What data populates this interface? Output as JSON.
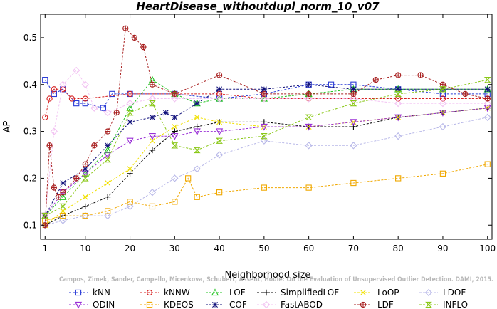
{
  "chart_data": {
    "type": "line",
    "title": "HeartDisease_withoutdupl_norm_10_v07",
    "xlabel": "Neighborhood size",
    "ylabel": "AP",
    "xlim": [
      0,
      101
    ],
    "ylim": [
      0.07,
      0.55
    ],
    "xticks": [
      1,
      10,
      20,
      30,
      40,
      50,
      60,
      70,
      80,
      90,
      100
    ],
    "yticks": [
      0.1,
      0.2,
      0.3,
      0.4,
      0.5
    ],
    "xtick_labels": [
      "1",
      "10",
      "20",
      "30",
      "40",
      "50",
      "60",
      "70",
      "80",
      "90",
      "100"
    ],
    "ytick_labels": [
      "0.1",
      "0.2",
      "0.3",
      "0.4",
      "0.5"
    ],
    "grid": false,
    "legend_position": "bottom",
    "watermark": "Campos, Zimek, Sander, Campello, Micenkova, Schubert, Assent, Houle: On the Evaluation of Unsupervised Outlier Detection. DAMI, 2015.",
    "series": [
      {
        "name": "kNN",
        "color": "#2a3bd6",
        "marker": "square",
        "x": [
          1,
          3,
          5,
          8,
          10,
          14,
          16,
          20,
          30,
          40,
          50,
          60,
          65,
          70,
          80,
          90,
          100
        ],
        "y": [
          0.41,
          0.38,
          0.39,
          0.36,
          0.36,
          0.35,
          0.38,
          0.38,
          0.38,
          0.37,
          0.38,
          0.4,
          0.4,
          0.4,
          0.39,
          0.38,
          0.38
        ]
      },
      {
        "name": "kNNW",
        "color": "#d62020",
        "marker": "circle",
        "x": [
          1,
          2,
          3,
          5,
          7,
          10,
          20,
          30,
          40,
          50,
          60,
          70,
          80,
          90,
          100
        ],
        "y": [
          0.33,
          0.37,
          0.39,
          0.39,
          0.37,
          0.37,
          0.38,
          0.38,
          0.38,
          0.37,
          0.37,
          0.37,
          0.37,
          0.37,
          0.37
        ]
      },
      {
        "name": "LOF",
        "color": "#22c422",
        "marker": "triangle",
        "x": [
          1,
          5,
          10,
          15,
          20,
          25,
          30,
          35,
          40,
          50,
          60,
          70,
          80,
          90,
          100
        ],
        "y": [
          0.12,
          0.16,
          0.21,
          0.26,
          0.35,
          0.41,
          0.38,
          0.36,
          0.37,
          0.37,
          0.38,
          0.39,
          0.39,
          0.39,
          0.39
        ]
      },
      {
        "name": "SimplifiedLOF",
        "color": "#000000",
        "marker": "plus",
        "x": [
          1,
          5,
          10,
          15,
          20,
          25,
          30,
          35,
          40,
          50,
          60,
          70,
          80,
          90,
          100
        ],
        "y": [
          0.1,
          0.12,
          0.14,
          0.16,
          0.21,
          0.26,
          0.3,
          0.31,
          0.32,
          0.32,
          0.31,
          0.31,
          0.33,
          0.34,
          0.35
        ]
      },
      {
        "name": "LoOP",
        "color": "#f0e000",
        "marker": "x",
        "x": [
          1,
          5,
          10,
          15,
          20,
          25,
          30,
          35,
          40,
          50,
          60,
          70,
          80,
          90,
          100
        ],
        "y": [
          0.1,
          0.13,
          0.16,
          0.19,
          0.22,
          0.28,
          0.31,
          0.33,
          0.32,
          0.31,
          0.31,
          0.32,
          0.33,
          0.34,
          0.35
        ]
      },
      {
        "name": "LDOF",
        "color": "#b8b8e8",
        "marker": "diamond",
        "x": [
          1,
          5,
          10,
          15,
          20,
          25,
          30,
          35,
          40,
          50,
          60,
          70,
          80,
          90,
          100
        ],
        "y": [
          0.1,
          0.11,
          0.12,
          0.12,
          0.14,
          0.17,
          0.2,
          0.22,
          0.25,
          0.28,
          0.27,
          0.27,
          0.29,
          0.31,
          0.33
        ]
      },
      {
        "name": "ODIN",
        "color": "#9a30d6",
        "marker": "triangle-down",
        "x": [
          1,
          5,
          10,
          15,
          20,
          25,
          30,
          35,
          40,
          50,
          60,
          70,
          80,
          90,
          100
        ],
        "y": [
          0.12,
          0.17,
          0.21,
          0.25,
          0.28,
          0.29,
          0.29,
          0.3,
          0.3,
          0.31,
          0.31,
          0.32,
          0.33,
          0.34,
          0.35
        ]
      },
      {
        "name": "KDEOS",
        "color": "#f0a800",
        "marker": "square",
        "x": [
          1,
          5,
          10,
          15,
          20,
          25,
          30,
          33,
          35,
          40,
          50,
          60,
          70,
          80,
          90,
          100
        ],
        "y": [
          0.11,
          0.12,
          0.12,
          0.13,
          0.15,
          0.14,
          0.15,
          0.2,
          0.16,
          0.17,
          0.18,
          0.18,
          0.19,
          0.2,
          0.21,
          0.23
        ]
      },
      {
        "name": "COF",
        "color": "#10107a",
        "marker": "star",
        "x": [
          1,
          5,
          10,
          15,
          20,
          25,
          28,
          30,
          35,
          40,
          50,
          60,
          70,
          80,
          90,
          100
        ],
        "y": [
          0.12,
          0.19,
          0.22,
          0.27,
          0.32,
          0.33,
          0.34,
          0.33,
          0.36,
          0.39,
          0.39,
          0.4,
          0.39,
          0.39,
          0.39,
          0.39
        ]
      },
      {
        "name": "FastABOD",
        "color": "#f2c2f2",
        "marker": "diamond",
        "x": [
          1,
          3,
          5,
          8,
          10,
          12,
          15,
          20,
          25,
          30,
          40,
          50,
          60,
          70,
          80,
          90,
          100
        ],
        "y": [
          0.12,
          0.3,
          0.4,
          0.43,
          0.4,
          0.35,
          0.34,
          0.36,
          0.37,
          0.37,
          0.37,
          0.37,
          0.37,
          0.37,
          0.36,
          0.36,
          0.36
        ]
      },
      {
        "name": "LDF",
        "color": "#a82020",
        "marker": "circle-plus",
        "x": [
          1,
          2,
          3,
          4,
          5,
          8,
          10,
          12,
          15,
          17,
          19,
          21,
          23,
          25,
          30,
          40,
          50,
          60,
          70,
          75,
          80,
          85,
          90,
          95,
          100
        ],
        "y": [
          0.1,
          0.27,
          0.18,
          0.16,
          0.17,
          0.2,
          0.23,
          0.27,
          0.3,
          0.34,
          0.52,
          0.5,
          0.48,
          0.4,
          0.38,
          0.42,
          0.38,
          0.38,
          0.38,
          0.41,
          0.42,
          0.42,
          0.4,
          0.38,
          0.37
        ]
      },
      {
        "name": "INFLO",
        "color": "#8ac818",
        "marker": "hourglass",
        "x": [
          1,
          5,
          10,
          15,
          20,
          25,
          30,
          35,
          40,
          50,
          60,
          70,
          80,
          90,
          100
        ],
        "y": [
          0.12,
          0.14,
          0.2,
          0.24,
          0.34,
          0.36,
          0.27,
          0.26,
          0.28,
          0.29,
          0.33,
          0.36,
          0.38,
          0.39,
          0.41
        ]
      }
    ]
  }
}
